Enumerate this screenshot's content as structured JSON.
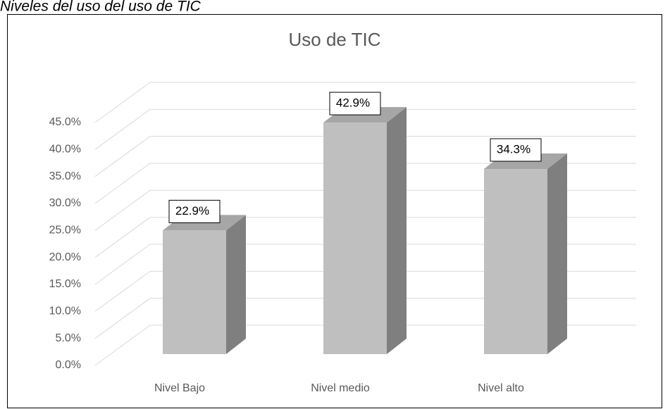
{
  "caption": "Niveles del uso del uso de TIC",
  "chart_data": {
    "type": "bar3d",
    "title": "Uso de TIC",
    "categories": [
      "Nivel Bajo",
      "Nivel medio",
      "Nivel alto"
    ],
    "values": [
      22.9,
      42.9,
      34.3
    ],
    "value_labels": [
      "22.9%",
      "42.9%",
      "34.3%"
    ],
    "color": "#bfbfbf",
    "ylim": [
      0,
      45
    ],
    "yticks": [
      {
        "value": 0,
        "label": "0.0%"
      },
      {
        "value": 5,
        "label": "5.0%"
      },
      {
        "value": 10,
        "label": "10.0%"
      },
      {
        "value": 15,
        "label": "15.0%"
      },
      {
        "value": 20,
        "label": "20.0%"
      },
      {
        "value": 25,
        "label": "25.0%"
      },
      {
        "value": 30,
        "label": "30.0%"
      },
      {
        "value": 35,
        "label": "35.0%"
      },
      {
        "value": 40,
        "label": "40.0%"
      },
      {
        "value": 45,
        "label": "45.0%"
      }
    ],
    "grid": true
  }
}
